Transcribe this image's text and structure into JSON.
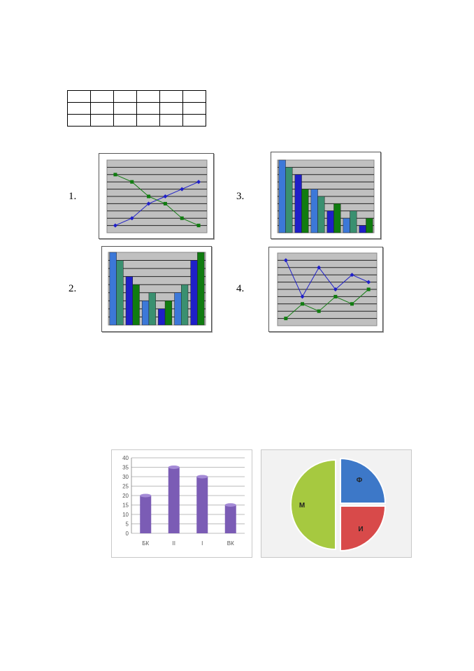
{
  "table": {
    "rows": 3,
    "cols": 6
  },
  "labels": [
    "1.",
    "2.",
    "3.",
    "4."
  ],
  "colors": {
    "blue_dark": "#1f1fc8",
    "blue_light": "#3c78d8",
    "green_teal": "#3a9070",
    "green_dark": "#107c10",
    "plot_gray": "#c0c0c0",
    "purple": "#7b5cb5",
    "pie_green": "#a6c940",
    "pie_blue": "#3d78c8",
    "pie_red": "#d84a4a"
  },
  "chart_data": [
    {
      "type": "line",
      "id": "chart-1",
      "x": [
        1,
        2,
        3,
        4,
        5,
        6
      ],
      "ylim": [
        0,
        10
      ],
      "series": [
        {
          "values": [
            1,
            2,
            4,
            5,
            6,
            7
          ]
        },
        {
          "values": [
            8,
            7,
            5,
            4,
            2,
            1
          ]
        }
      ]
    },
    {
      "type": "bar",
      "id": "chart-2",
      "categories": [
        "",
        "",
        "",
        "",
        "",
        ""
      ],
      "ylim": [
        0,
        9
      ],
      "series": [
        {
          "values": [
            9,
            6,
            3,
            2,
            4,
            8
          ]
        },
        {
          "values": [
            8,
            5,
            4,
            3,
            5,
            9
          ]
        }
      ]
    },
    {
      "type": "bar",
      "id": "chart-3",
      "categories": [
        "",
        "",
        "",
        "",
        "",
        ""
      ],
      "ylim": [
        0,
        10
      ],
      "series": [
        {
          "values": [
            10,
            8,
            6,
            3,
            2,
            1
          ]
        },
        {
          "values": [
            9,
            6,
            5,
            4,
            3,
            2
          ]
        }
      ]
    },
    {
      "type": "line",
      "id": "chart-4",
      "x": [
        1,
        2,
        3,
        4,
        5,
        6
      ],
      "ylim": [
        0,
        10
      ],
      "series": [
        {
          "values": [
            9,
            4,
            8,
            5,
            7,
            6
          ]
        },
        {
          "values": [
            1,
            3,
            2,
            4,
            3,
            5
          ]
        }
      ]
    },
    {
      "type": "bar",
      "id": "chart-5",
      "categories": [
        "БК",
        "II",
        "I",
        "ВК"
      ],
      "values": [
        20,
        35,
        30,
        15
      ],
      "ylim": [
        0,
        40
      ],
      "yticks": [
        0,
        5,
        10,
        15,
        20,
        25,
        30,
        35,
        40
      ]
    },
    {
      "type": "pie",
      "id": "chart-6",
      "slices": [
        {
          "label": "М",
          "value": 50
        },
        {
          "label": "Ф",
          "value": 25
        },
        {
          "label": "И",
          "value": 25
        }
      ]
    }
  ]
}
